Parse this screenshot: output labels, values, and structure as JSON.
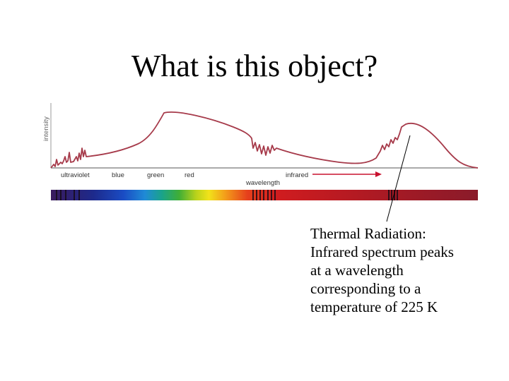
{
  "slide": {
    "title": "What is this object?"
  },
  "figure": {
    "y_axis_label": "intensity",
    "x_axis_label": "wavelength",
    "band_labels": {
      "ultraviolet": "ultraviolet",
      "blue": "blue",
      "green": "green",
      "red": "red",
      "infrared": "infrared"
    },
    "colors": {
      "curve": "#a63a4a",
      "axis": "#555555",
      "arrow": "#c8102e",
      "pointer_line": "#000000"
    }
  },
  "caption": {
    "line1": "Thermal Radiation:",
    "line2": "Infrared spectrum peaks",
    "line3": "at a wavelength",
    "line4": "corresponding to a",
    "line5": "temperature of 225 K"
  }
}
